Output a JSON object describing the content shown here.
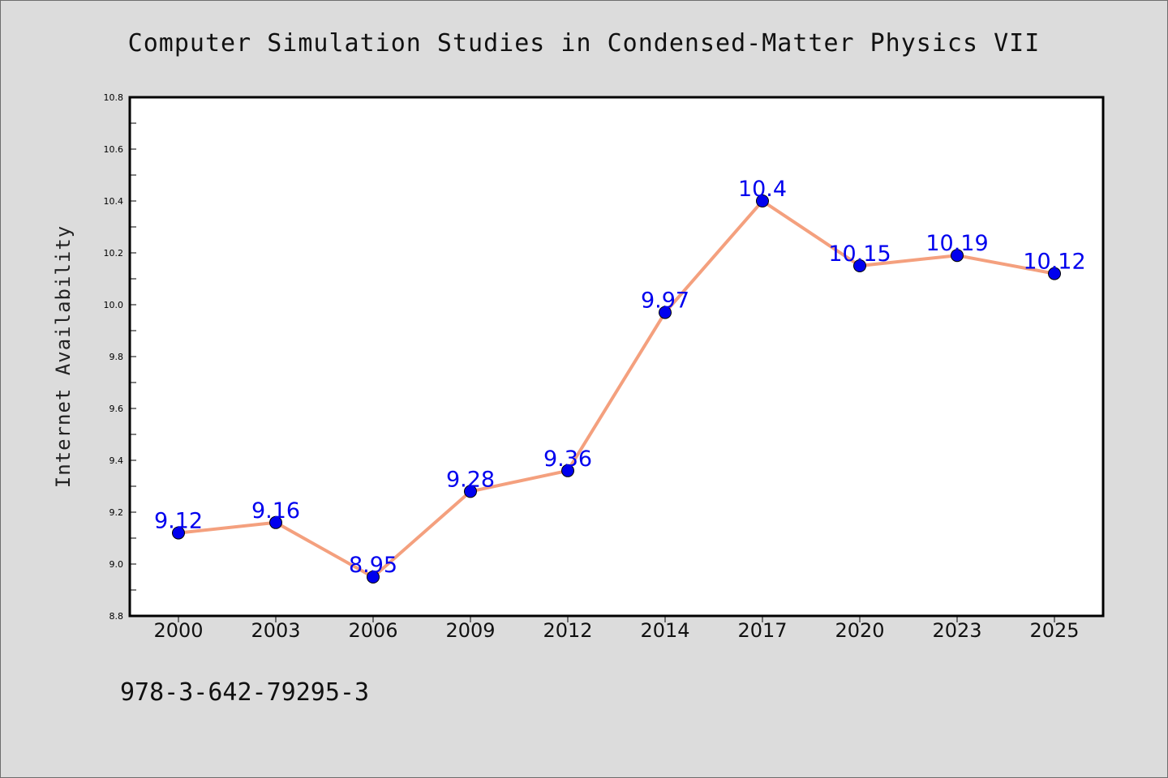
{
  "chart_data": {
    "type": "line",
    "title": "Computer Simulation Studies in Condensed-Matter Physics VII",
    "xlabel": "",
    "ylabel": "Internet Availability",
    "categories": [
      "2000",
      "2003",
      "2006",
      "2009",
      "2012",
      "2014",
      "2017",
      "2020",
      "2023",
      "2025"
    ],
    "series": [
      {
        "values": [
          9.12,
          9.16,
          8.95,
          9.28,
          9.36,
          9.97,
          10.4,
          10.15,
          10.19,
          10.12
        ],
        "labels": [
          "9.12",
          "9.16",
          "8.95",
          "9.28",
          "9.36",
          "9.97",
          "10.4",
          "10.15",
          "10.19",
          "10.12"
        ],
        "line_color": "#f4a07e",
        "marker_color": "#0000ee"
      }
    ],
    "ylim": [
      8.8,
      10.8
    ],
    "yticks": [
      "8.8",
      "9.0",
      "9.2",
      "9.4",
      "9.6",
      "9.8",
      "10.0",
      "10.2",
      "10.4",
      "10.6",
      "10.8"
    ],
    "grid": false,
    "legend": "none"
  },
  "footer_text": "978-3-642-79295-3",
  "colors": {
    "background": "#dcdcdc",
    "plot_background": "#ffffff",
    "label_color": "#0000ee"
  }
}
